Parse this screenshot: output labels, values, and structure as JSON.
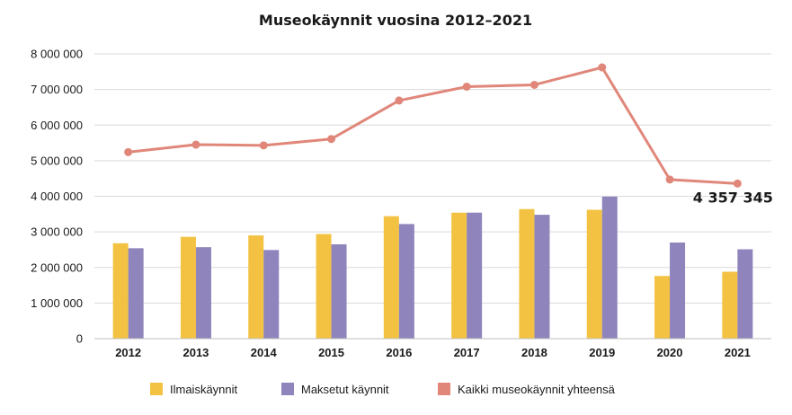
{
  "chart_data": {
    "type": "bar",
    "title": "Museokäynnit vuosina 2012–2021",
    "categories": [
      "2012",
      "2013",
      "2014",
      "2015",
      "2016",
      "2017",
      "2018",
      "2019",
      "2020",
      "2021"
    ],
    "series": [
      {
        "name": "Ilmaiskäynnit",
        "type": "bar",
        "color": "#f4c242",
        "values": [
          2680000,
          2860000,
          2900000,
          2940000,
          3440000,
          3540000,
          3640000,
          3620000,
          1760000,
          1880000
        ]
      },
      {
        "name": "Maksetut käynnit",
        "type": "bar",
        "color": "#8f84bb",
        "values": [
          2540000,
          2570000,
          2490000,
          2650000,
          3220000,
          3540000,
          3480000,
          3990000,
          2700000,
          2510000
        ]
      },
      {
        "name": "Kaikki museokäynnit yhteensä",
        "type": "line",
        "color": "#e0877a",
        "values": [
          5240000,
          5450000,
          5430000,
          5610000,
          6690000,
          7080000,
          7130000,
          7620000,
          4470000,
          4357345
        ]
      }
    ],
    "yticks": [
      "0",
      "1 000 000",
      "2 000 000",
      "3 000 000",
      "4 000 000",
      "5 000 000",
      "6 000 000",
      "7 000 000",
      "8 000 000"
    ],
    "ylim": [
      0,
      8000000
    ],
    "grid": true,
    "legend": "bottom",
    "annotations": [
      {
        "series": "Kaikki museokäynnit yhteensä",
        "category": "2021",
        "text": "4 357 345"
      }
    ]
  }
}
